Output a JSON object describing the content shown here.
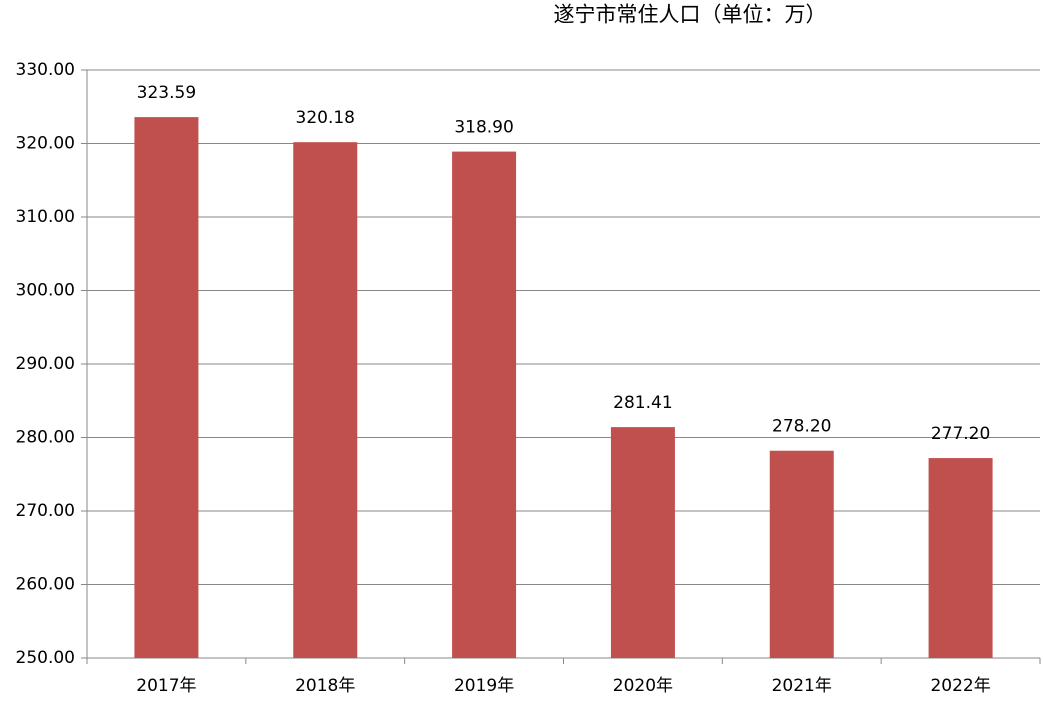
{
  "chart_data": {
    "type": "bar",
    "title": "遂宁市常住人口（单位：万）",
    "categories": [
      "2017年",
      "2018年",
      "2019年",
      "2020年",
      "2021年",
      "2022年"
    ],
    "values": [
      323.59,
      320.18,
      318.9,
      281.41,
      278.2,
      277.2
    ],
    "value_labels": [
      "323.59",
      "320.18",
      "318.90",
      "281.41",
      "278.20",
      "277.20"
    ],
    "color": "#c0504d",
    "ylim": [
      250,
      330
    ],
    "yticks": [
      {
        "value": 250,
        "label": "250.00"
      },
      {
        "value": 260,
        "label": "260.00"
      },
      {
        "value": 270,
        "label": "270.00"
      },
      {
        "value": 280,
        "label": "280.00"
      },
      {
        "value": 290,
        "label": "290.00"
      },
      {
        "value": 300,
        "label": "300.00"
      },
      {
        "value": 310,
        "label": "310.00"
      },
      {
        "value": 320,
        "label": "320.00"
      },
      {
        "value": 330,
        "label": "330.00"
      }
    ],
    "grid": true
  }
}
